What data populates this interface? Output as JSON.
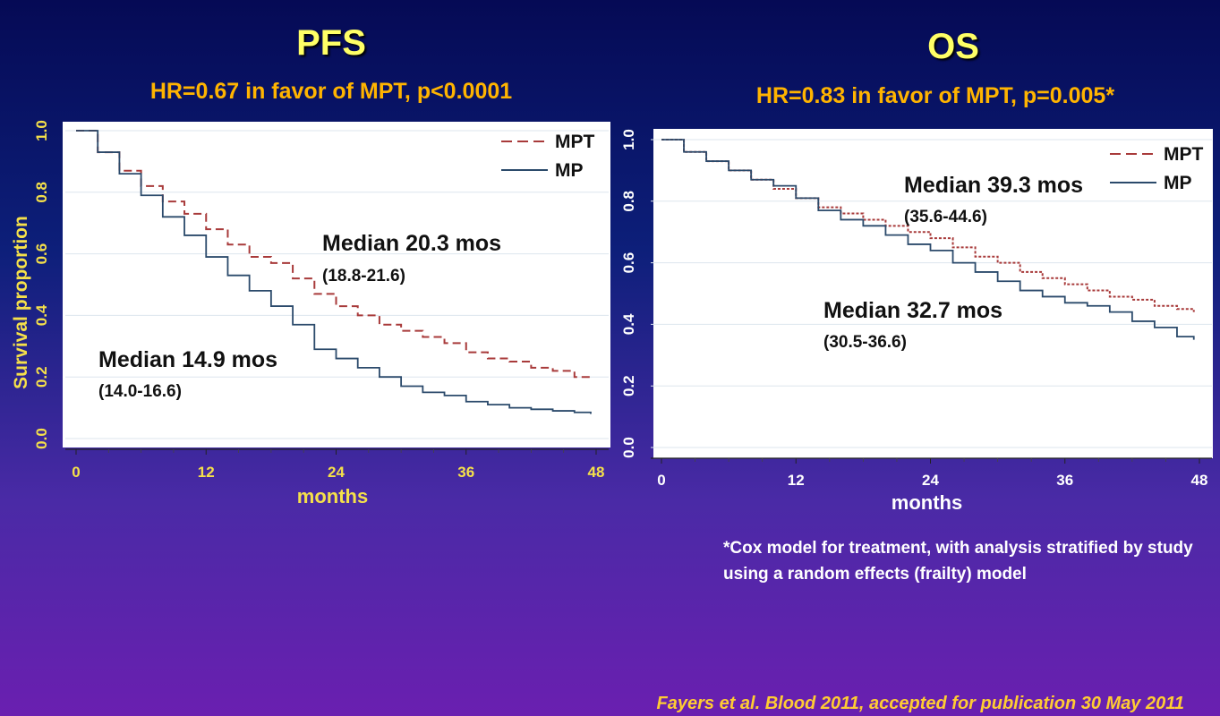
{
  "left_panel": {
    "title": "PFS",
    "subtitle": "HR=0.67 in favor of MPT, p<0.0001"
  },
  "right_panel": {
    "title": "OS",
    "subtitle": "HR=0.83 in favor of MPT, p=0.005*",
    "footnote": "*Cox model for treatment, with analysis stratified by study using a random effects (frailty) model"
  },
  "citation": "Fayers  et al. Blood 2011, accepted for publication 30 May 2011",
  "colors": {
    "MPT": "#a83a3a",
    "MP": "#2b4a6b",
    "axis_text_left": "#f5e04a",
    "axis_text_right": "#ffffff"
  },
  "chart_data": [
    {
      "type": "line",
      "title": "PFS",
      "xlabel": "months",
      "ylabel": "Survival proportion",
      "xlim": [
        0,
        48
      ],
      "ylim": [
        0,
        1
      ],
      "xticks": [
        "0",
        "12",
        "24",
        "36",
        "48"
      ],
      "yticks": [
        "0.0",
        "0.2",
        "0.4",
        "0.6",
        "0.8",
        "1.0"
      ],
      "grid": true,
      "legend": "top-right",
      "series": [
        {
          "name": "MPT",
          "style": "dashed",
          "x": [
            0,
            2,
            4,
            6,
            8,
            10,
            12,
            14,
            16,
            18,
            20,
            22,
            24,
            26,
            28,
            30,
            32,
            34,
            36,
            38,
            40,
            42,
            44,
            46,
            47.5
          ],
          "y": [
            1.0,
            0.93,
            0.87,
            0.82,
            0.77,
            0.73,
            0.68,
            0.63,
            0.59,
            0.57,
            0.52,
            0.47,
            0.43,
            0.4,
            0.37,
            0.35,
            0.33,
            0.31,
            0.28,
            0.26,
            0.25,
            0.23,
            0.22,
            0.2,
            0.19
          ]
        },
        {
          "name": "MP",
          "style": "solid",
          "x": [
            0,
            2,
            4,
            6,
            8,
            10,
            12,
            14,
            16,
            18,
            20,
            22,
            24,
            26,
            28,
            30,
            32,
            34,
            36,
            38,
            40,
            42,
            44,
            46,
            47.5
          ],
          "y": [
            1.0,
            0.93,
            0.86,
            0.79,
            0.72,
            0.66,
            0.59,
            0.53,
            0.48,
            0.43,
            0.37,
            0.29,
            0.26,
            0.23,
            0.2,
            0.17,
            0.15,
            0.14,
            0.12,
            0.11,
            0.1,
            0.095,
            0.09,
            0.085,
            0.08
          ]
        }
      ],
      "annotations": [
        {
          "text": "Median 20.3 mos",
          "sub": "(18.8-21.6)"
        },
        {
          "text": "Median 14.9 mos",
          "sub": "(14.0-16.6)"
        }
      ]
    },
    {
      "type": "line",
      "title": "OS",
      "xlabel": "months",
      "ylabel": "",
      "xlim": [
        0,
        48
      ],
      "ylim": [
        0,
        1
      ],
      "xticks": [
        "0",
        "12",
        "24",
        "36",
        "48"
      ],
      "yticks": [
        "0.0",
        "0.2",
        "0.4",
        "0.6",
        "0.8",
        "1.0"
      ],
      "grid": true,
      "legend": "top-right",
      "series": [
        {
          "name": "MPT",
          "style": "dashed",
          "x": [
            0,
            2,
            4,
            6,
            8,
            10,
            12,
            14,
            16,
            18,
            20,
            22,
            24,
            26,
            28,
            30,
            32,
            34,
            36,
            38,
            40,
            42,
            44,
            46,
            47.5
          ],
          "y": [
            1.0,
            0.96,
            0.93,
            0.9,
            0.87,
            0.84,
            0.81,
            0.78,
            0.76,
            0.74,
            0.72,
            0.7,
            0.68,
            0.65,
            0.62,
            0.6,
            0.57,
            0.55,
            0.53,
            0.51,
            0.49,
            0.48,
            0.46,
            0.45,
            0.44
          ]
        },
        {
          "name": "MP",
          "style": "solid",
          "x": [
            0,
            2,
            4,
            6,
            8,
            10,
            12,
            14,
            16,
            18,
            20,
            22,
            24,
            26,
            28,
            30,
            32,
            34,
            36,
            38,
            40,
            42,
            44,
            46,
            47.5
          ],
          "y": [
            1.0,
            0.96,
            0.93,
            0.9,
            0.87,
            0.85,
            0.81,
            0.77,
            0.74,
            0.72,
            0.69,
            0.66,
            0.64,
            0.6,
            0.57,
            0.54,
            0.51,
            0.49,
            0.47,
            0.46,
            0.44,
            0.41,
            0.39,
            0.36,
            0.35
          ]
        }
      ],
      "annotations": [
        {
          "text": "Median 39.3 mos",
          "sub": "(35.6-44.6)"
        },
        {
          "text": "Median 32.7 mos",
          "sub": "(30.5-36.6)"
        }
      ]
    }
  ]
}
